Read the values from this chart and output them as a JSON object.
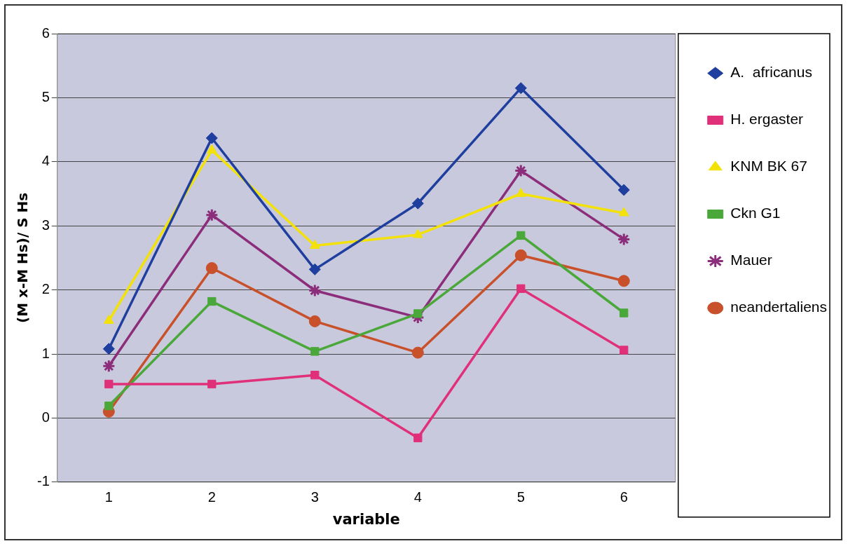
{
  "chart_data": {
    "type": "line",
    "xlabel": "variable",
    "ylabel": "(M x-M Hs)/ S Hs",
    "categories": [
      "1",
      "2",
      "3",
      "4",
      "5",
      "6"
    ],
    "ylim": [
      -1,
      6
    ],
    "yticks": [
      -1,
      0,
      1,
      2,
      3,
      4,
      5,
      6
    ],
    "grid": "y",
    "legend": "right",
    "series": [
      {
        "name": "A.  africanus",
        "color": "#1f3f9f",
        "marker": "diamond",
        "values": [
          1.08,
          4.37,
          2.32,
          3.35,
          5.15,
          3.56
        ]
      },
      {
        "name": "H. ergaster",
        "color": "#e0307a",
        "marker": "square",
        "values": [
          0.53,
          0.53,
          0.67,
          -0.31,
          2.02,
          1.06
        ]
      },
      {
        "name": "KNM BK 67",
        "color": "#f2e20a",
        "marker": "triangle",
        "values": [
          1.52,
          4.18,
          2.69,
          2.86,
          3.5,
          3.2
        ]
      },
      {
        "name": "Ckn G1",
        "color": "#4aa83a",
        "marker": "square",
        "values": [
          0.19,
          1.82,
          1.04,
          1.63,
          2.85,
          1.64
        ]
      },
      {
        "name": "Mauer",
        "color": "#8b2d7a",
        "marker": "cross",
        "values": [
          0.81,
          3.17,
          1.99,
          1.57,
          3.86,
          2.79
        ]
      },
      {
        "name": "neandertaliens",
        "color": "#c8502a",
        "marker": "circle",
        "values": [
          0.1,
          2.34,
          1.51,
          1.02,
          2.54,
          2.14
        ]
      }
    ]
  }
}
